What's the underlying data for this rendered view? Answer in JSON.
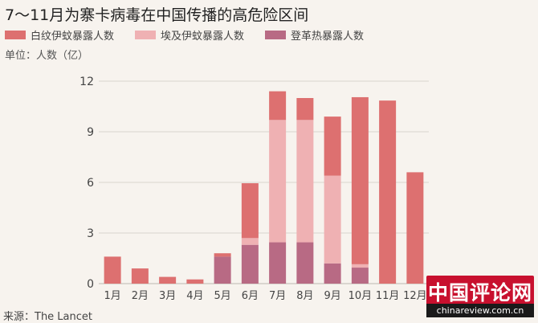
{
  "chart_data": {
    "type": "bar",
    "stacked": true,
    "title": "7～11月为寨卡病毒在中国传播的高危险区间",
    "unit_label": "单位：人数（亿）",
    "source": "来源：The Lancet",
    "categories": [
      "1月",
      "2月",
      "3月",
      "4月",
      "5月",
      "6月",
      "7月",
      "8月",
      "9月",
      "10月",
      "11月",
      "12月"
    ],
    "ylim": [
      0,
      12
    ],
    "yticks": [
      0,
      3,
      6,
      9,
      12
    ],
    "grid": true,
    "legend_position": "top-left",
    "series": [
      {
        "name": "登革热暴露人数",
        "color": "#b86a84",
        "values": [
          0,
          0,
          0,
          0,
          1.6,
          2.3,
          2.45,
          2.45,
          1.2,
          0.95,
          0,
          0
        ]
      },
      {
        "name": "埃及伊蚊暴露人数",
        "color": "#efb1b3",
        "values": [
          0,
          0,
          0,
          0,
          0,
          0.4,
          7.25,
          7.25,
          5.2,
          0.2,
          0,
          0
        ]
      },
      {
        "name": "白纹伊蚊暴露人数",
        "color": "#dd7070",
        "values": [
          1.6,
          0.9,
          0.4,
          0.25,
          0.2,
          3.25,
          1.7,
          1.3,
          3.5,
          9.9,
          10.85,
          6.6
        ]
      }
    ],
    "legend_order": [
      2,
      1,
      0
    ]
  },
  "watermark": {
    "top": "中国评论网",
    "bottom": "chinareview.com.cn"
  }
}
